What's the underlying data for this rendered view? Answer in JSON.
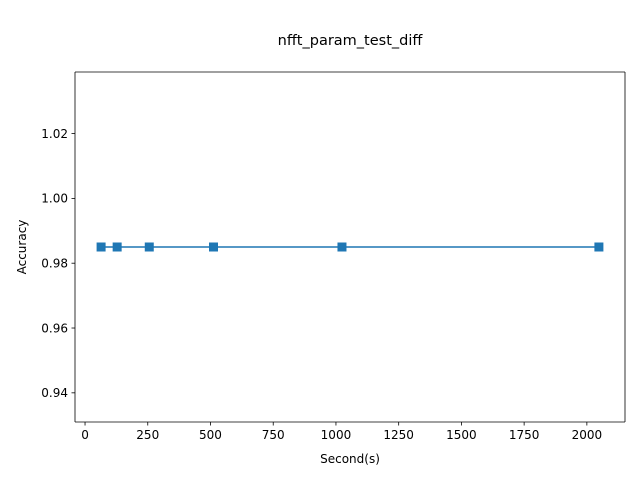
{
  "chart_data": {
    "type": "line",
    "title": "nfft_param_test_diff",
    "xlabel": "Second(s)",
    "ylabel": "Accuracy",
    "xlim": [
      -40,
      2152
    ],
    "ylim": [
      0.931,
      1.039
    ],
    "xticks": [
      0,
      250,
      500,
      750,
      1000,
      1250,
      1500,
      1750,
      2000
    ],
    "yticks": [
      0.94,
      0.96,
      0.98,
      1.0,
      1.02
    ],
    "ytick_labels": [
      "0.94",
      "0.96",
      "0.98",
      "1.00",
      "1.02"
    ],
    "grid": false,
    "series": [
      {
        "color": "#1f77b4",
        "marker": "square",
        "x": [
          64,
          128,
          256,
          512,
          1024,
          2048
        ],
        "y": [
          0.985,
          0.985,
          0.985,
          0.985,
          0.985,
          0.985
        ]
      }
    ]
  }
}
